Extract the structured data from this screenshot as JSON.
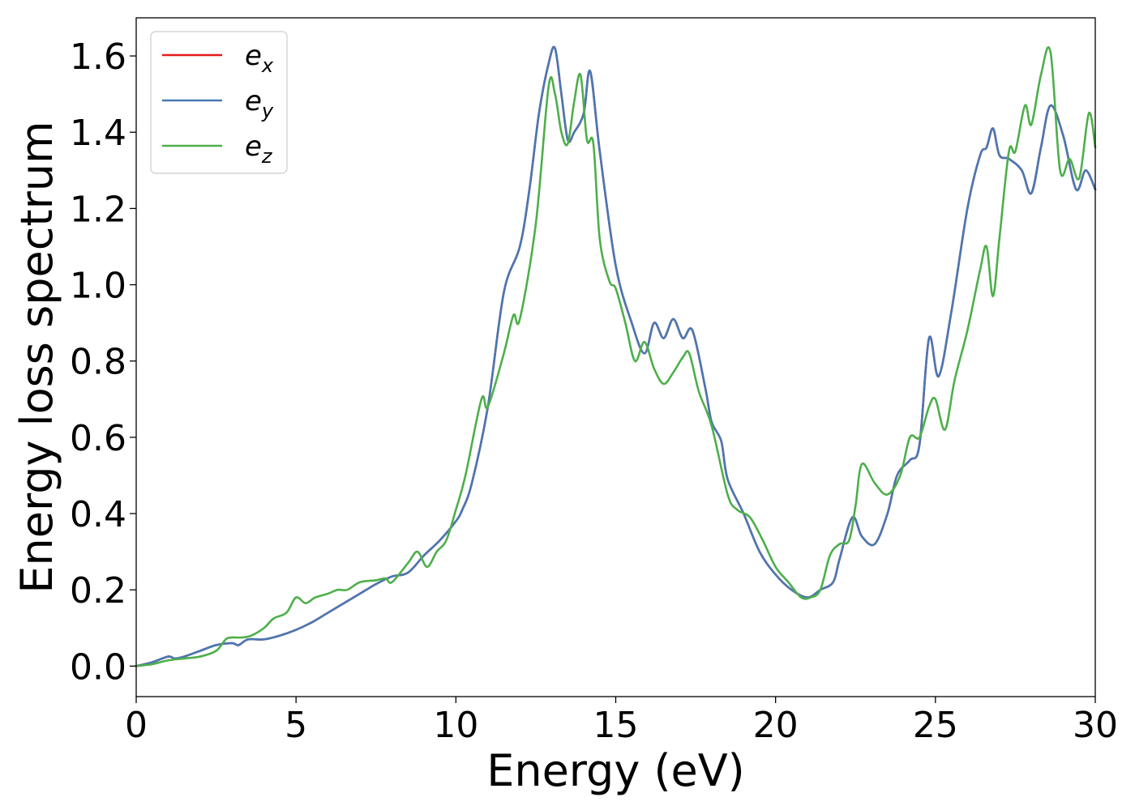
{
  "chart_data": {
    "type": "line",
    "xlabel": "Energy (eV)",
    "ylabel": "Energy loss spectrum",
    "xlim": [
      0,
      30
    ],
    "ylim": [
      -0.08,
      1.7
    ],
    "xticks": [
      0,
      5,
      10,
      15,
      20,
      25,
      30
    ],
    "xtick_labels": [
      "0",
      "5",
      "10",
      "15",
      "20",
      "25",
      "30"
    ],
    "yticks": [
      0.0,
      0.2,
      0.4,
      0.6,
      0.8,
      1.0,
      1.2,
      1.4,
      1.6
    ],
    "ytick_labels": [
      "0.0",
      "0.2",
      "0.4",
      "0.6",
      "0.8",
      "1.0",
      "1.2",
      "1.4",
      "1.6"
    ],
    "grid": false,
    "legend_position": "top-left",
    "series": [
      {
        "name": "e_x",
        "label_base": "e",
        "label_sub": "x",
        "color": "#e41a1c",
        "x": [
          0,
          0.5,
          1.0,
          1.2,
          1.5,
          2.0,
          2.5,
          3.0,
          3.2,
          3.5,
          4.0,
          4.5,
          5.0,
          5.5,
          6.0,
          6.5,
          7.0,
          7.5,
          8.0,
          8.5,
          9.0,
          9.5,
          10.0,
          10.2,
          10.5,
          11.0,
          11.5,
          12.0,
          12.3,
          12.6,
          12.9,
          13.1,
          13.3,
          13.5,
          13.7,
          14.0,
          14.2,
          14.5,
          15.0,
          15.5,
          15.9,
          16.2,
          16.5,
          16.8,
          17.1,
          17.4,
          17.8,
          18.0,
          18.3,
          18.5,
          19.0,
          19.5,
          20.0,
          20.5,
          21.0,
          21.4,
          21.8,
          22.0,
          22.4,
          22.7,
          23.1,
          23.5,
          23.8,
          24.2,
          24.5,
          24.8,
          25.1,
          25.5,
          26.0,
          26.4,
          26.6,
          26.8,
          27.0,
          27.3,
          27.7,
          28.0,
          28.3,
          28.6,
          29.0,
          29.4,
          29.7,
          30.0
        ],
        "values": [
          0.0,
          0.01,
          0.025,
          0.02,
          0.025,
          0.04,
          0.055,
          0.06,
          0.055,
          0.07,
          0.07,
          0.08,
          0.095,
          0.115,
          0.14,
          0.165,
          0.19,
          0.215,
          0.235,
          0.245,
          0.29,
          0.33,
          0.38,
          0.41,
          0.48,
          0.68,
          0.98,
          1.1,
          1.25,
          1.45,
          1.58,
          1.62,
          1.5,
          1.38,
          1.4,
          1.45,
          1.56,
          1.35,
          1.05,
          0.9,
          0.82,
          0.9,
          0.86,
          0.91,
          0.86,
          0.88,
          0.73,
          0.64,
          0.59,
          0.49,
          0.4,
          0.3,
          0.24,
          0.2,
          0.18,
          0.2,
          0.22,
          0.28,
          0.39,
          0.34,
          0.32,
          0.4,
          0.5,
          0.54,
          0.58,
          0.86,
          0.76,
          0.93,
          1.2,
          1.34,
          1.36,
          1.41,
          1.34,
          1.33,
          1.3,
          1.24,
          1.36,
          1.47,
          1.39,
          1.25,
          1.3,
          1.25
        ]
      },
      {
        "name": "e_y",
        "label_base": "e",
        "label_sub": "y",
        "color": "#4878b4",
        "x": [
          0,
          0.5,
          1.0,
          1.2,
          1.5,
          2.0,
          2.5,
          3.0,
          3.2,
          3.5,
          4.0,
          4.5,
          5.0,
          5.5,
          6.0,
          6.5,
          7.0,
          7.5,
          8.0,
          8.5,
          9.0,
          9.5,
          10.0,
          10.2,
          10.5,
          11.0,
          11.5,
          12.0,
          12.3,
          12.6,
          12.9,
          13.1,
          13.3,
          13.5,
          13.7,
          14.0,
          14.2,
          14.5,
          15.0,
          15.5,
          15.9,
          16.2,
          16.5,
          16.8,
          17.1,
          17.4,
          17.8,
          18.0,
          18.3,
          18.5,
          19.0,
          19.5,
          20.0,
          20.5,
          21.0,
          21.4,
          21.8,
          22.0,
          22.4,
          22.7,
          23.1,
          23.5,
          23.8,
          24.2,
          24.5,
          24.8,
          25.1,
          25.5,
          26.0,
          26.4,
          26.6,
          26.8,
          27.0,
          27.3,
          27.7,
          28.0,
          28.3,
          28.6,
          29.0,
          29.4,
          29.7,
          30.0
        ],
        "values": [
          0.0,
          0.01,
          0.025,
          0.02,
          0.025,
          0.04,
          0.055,
          0.06,
          0.055,
          0.07,
          0.07,
          0.08,
          0.095,
          0.115,
          0.14,
          0.165,
          0.19,
          0.215,
          0.235,
          0.245,
          0.29,
          0.33,
          0.38,
          0.41,
          0.48,
          0.68,
          0.98,
          1.1,
          1.25,
          1.45,
          1.58,
          1.62,
          1.5,
          1.38,
          1.4,
          1.45,
          1.56,
          1.35,
          1.05,
          0.9,
          0.82,
          0.9,
          0.86,
          0.91,
          0.86,
          0.88,
          0.73,
          0.64,
          0.59,
          0.49,
          0.4,
          0.3,
          0.24,
          0.2,
          0.18,
          0.2,
          0.22,
          0.28,
          0.39,
          0.34,
          0.32,
          0.4,
          0.5,
          0.54,
          0.58,
          0.86,
          0.76,
          0.93,
          1.2,
          1.34,
          1.36,
          1.41,
          1.34,
          1.33,
          1.3,
          1.24,
          1.36,
          1.47,
          1.39,
          1.25,
          1.3,
          1.25
        ]
      },
      {
        "name": "e_z",
        "label_base": "e",
        "label_sub": "z",
        "color": "#4daf4a",
        "x": [
          0,
          0.5,
          1.0,
          1.5,
          2.0,
          2.5,
          2.8,
          3.0,
          3.3,
          3.6,
          4.0,
          4.3,
          4.7,
          5.0,
          5.3,
          5.6,
          6.0,
          6.3,
          6.6,
          7.0,
          7.5,
          7.8,
          8.0,
          8.5,
          8.8,
          9.1,
          9.4,
          9.7,
          10.0,
          10.3,
          10.8,
          11.0,
          11.5,
          11.8,
          12.0,
          12.5,
          12.9,
          13.1,
          13.3,
          13.5,
          13.7,
          13.9,
          14.1,
          14.3,
          14.5,
          14.8,
          15.0,
          15.3,
          15.6,
          15.9,
          16.2,
          16.5,
          16.8,
          17.1,
          17.3,
          17.6,
          18.0,
          18.5,
          18.8,
          19.2,
          19.6,
          20.0,
          20.4,
          20.8,
          21.1,
          21.4,
          21.7,
          22.0,
          22.3,
          22.5,
          22.7,
          23.1,
          23.5,
          23.9,
          24.2,
          24.5,
          24.8,
          25.0,
          25.3,
          25.6,
          26.0,
          26.4,
          26.6,
          26.8,
          27.0,
          27.3,
          27.5,
          27.8,
          28.0,
          28.3,
          28.6,
          28.9,
          29.2,
          29.5,
          29.8,
          30.0
        ],
        "values": [
          0.0,
          0.005,
          0.015,
          0.02,
          0.025,
          0.04,
          0.07,
          0.075,
          0.075,
          0.08,
          0.1,
          0.125,
          0.14,
          0.18,
          0.165,
          0.18,
          0.19,
          0.2,
          0.2,
          0.22,
          0.225,
          0.23,
          0.22,
          0.27,
          0.3,
          0.26,
          0.3,
          0.33,
          0.41,
          0.5,
          0.7,
          0.68,
          0.82,
          0.92,
          0.91,
          1.16,
          1.52,
          1.5,
          1.4,
          1.37,
          1.48,
          1.55,
          1.38,
          1.37,
          1.12,
          1.01,
          0.99,
          0.9,
          0.8,
          0.85,
          0.78,
          0.74,
          0.77,
          0.81,
          0.82,
          0.72,
          0.63,
          0.45,
          0.41,
          0.39,
          0.33,
          0.26,
          0.22,
          0.18,
          0.18,
          0.2,
          0.29,
          0.32,
          0.33,
          0.42,
          0.53,
          0.48,
          0.45,
          0.5,
          0.6,
          0.6,
          0.68,
          0.7,
          0.62,
          0.75,
          0.88,
          1.04,
          1.1,
          0.97,
          1.12,
          1.35,
          1.35,
          1.47,
          1.42,
          1.55,
          1.61,
          1.3,
          1.33,
          1.28,
          1.45,
          1.36
        ]
      }
    ]
  }
}
